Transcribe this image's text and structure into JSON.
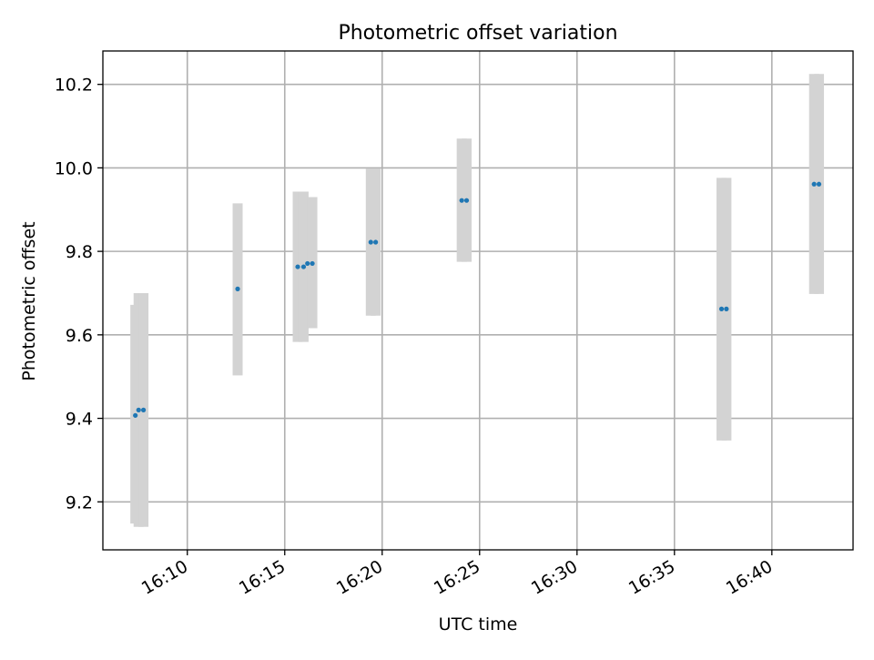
{
  "chart_data": {
    "type": "scatter",
    "title": "Photometric offset variation",
    "xlabel": "UTC time",
    "ylabel": "Photometric offset",
    "x_axis": {
      "kind": "time",
      "range": [
        "16:05:40",
        "16:44:10"
      ],
      "ticks": [
        "16:10",
        "16:15",
        "16:20",
        "16:25",
        "16:30",
        "16:35",
        "16:40"
      ]
    },
    "y_axis": {
      "range": [
        9.085,
        10.28
      ],
      "ticks": [
        9.2,
        9.4,
        9.6,
        9.8,
        10.0,
        10.2
      ],
      "tick_labels": [
        "9.2",
        "9.4",
        "9.6",
        "9.8",
        "10.0",
        "10.2"
      ]
    },
    "grid": true,
    "series": [
      {
        "marker_color": "#1f77b4",
        "error_bar_color": "#d3d3d3",
        "points": [
          {
            "x": "16:07:20",
            "y": 9.407,
            "ylo": 9.148,
            "yhi": 9.672
          },
          {
            "x": "16:07:30",
            "y": 9.42,
            "ylo": 9.14,
            "yhi": 9.7
          },
          {
            "x": "16:07:45",
            "y": 9.42,
            "ylo": 9.14,
            "yhi": 9.7
          },
          {
            "x": "16:12:35",
            "y": 9.71,
            "ylo": 9.503,
            "yhi": 9.915
          },
          {
            "x": "16:15:40",
            "y": 9.763,
            "ylo": 9.583,
            "yhi": 9.943
          },
          {
            "x": "16:15:58",
            "y": 9.763,
            "ylo": 9.583,
            "yhi": 9.943
          },
          {
            "x": "16:16:10",
            "y": 9.771,
            "ylo": 9.616,
            "yhi": 9.93
          },
          {
            "x": "16:16:25",
            "y": 9.771,
            "ylo": 9.616,
            "yhi": 9.93
          },
          {
            "x": "16:19:25",
            "y": 9.822,
            "ylo": 9.646,
            "yhi": 9.998
          },
          {
            "x": "16:19:40",
            "y": 9.822,
            "ylo": 9.646,
            "yhi": 9.998
          },
          {
            "x": "16:24:05",
            "y": 9.922,
            "ylo": 9.775,
            "yhi": 10.07
          },
          {
            "x": "16:24:20",
            "y": 9.922,
            "ylo": 9.775,
            "yhi": 10.07
          },
          {
            "x": "16:37:25",
            "y": 9.662,
            "ylo": 9.347,
            "yhi": 9.976
          },
          {
            "x": "16:37:40",
            "y": 9.662,
            "ylo": 9.347,
            "yhi": 9.976
          },
          {
            "x": "16:42:10",
            "y": 9.961,
            "ylo": 9.698,
            "yhi": 10.225
          },
          {
            "x": "16:42:25",
            "y": 9.961,
            "ylo": 9.698,
            "yhi": 10.225
          }
        ]
      }
    ]
  }
}
